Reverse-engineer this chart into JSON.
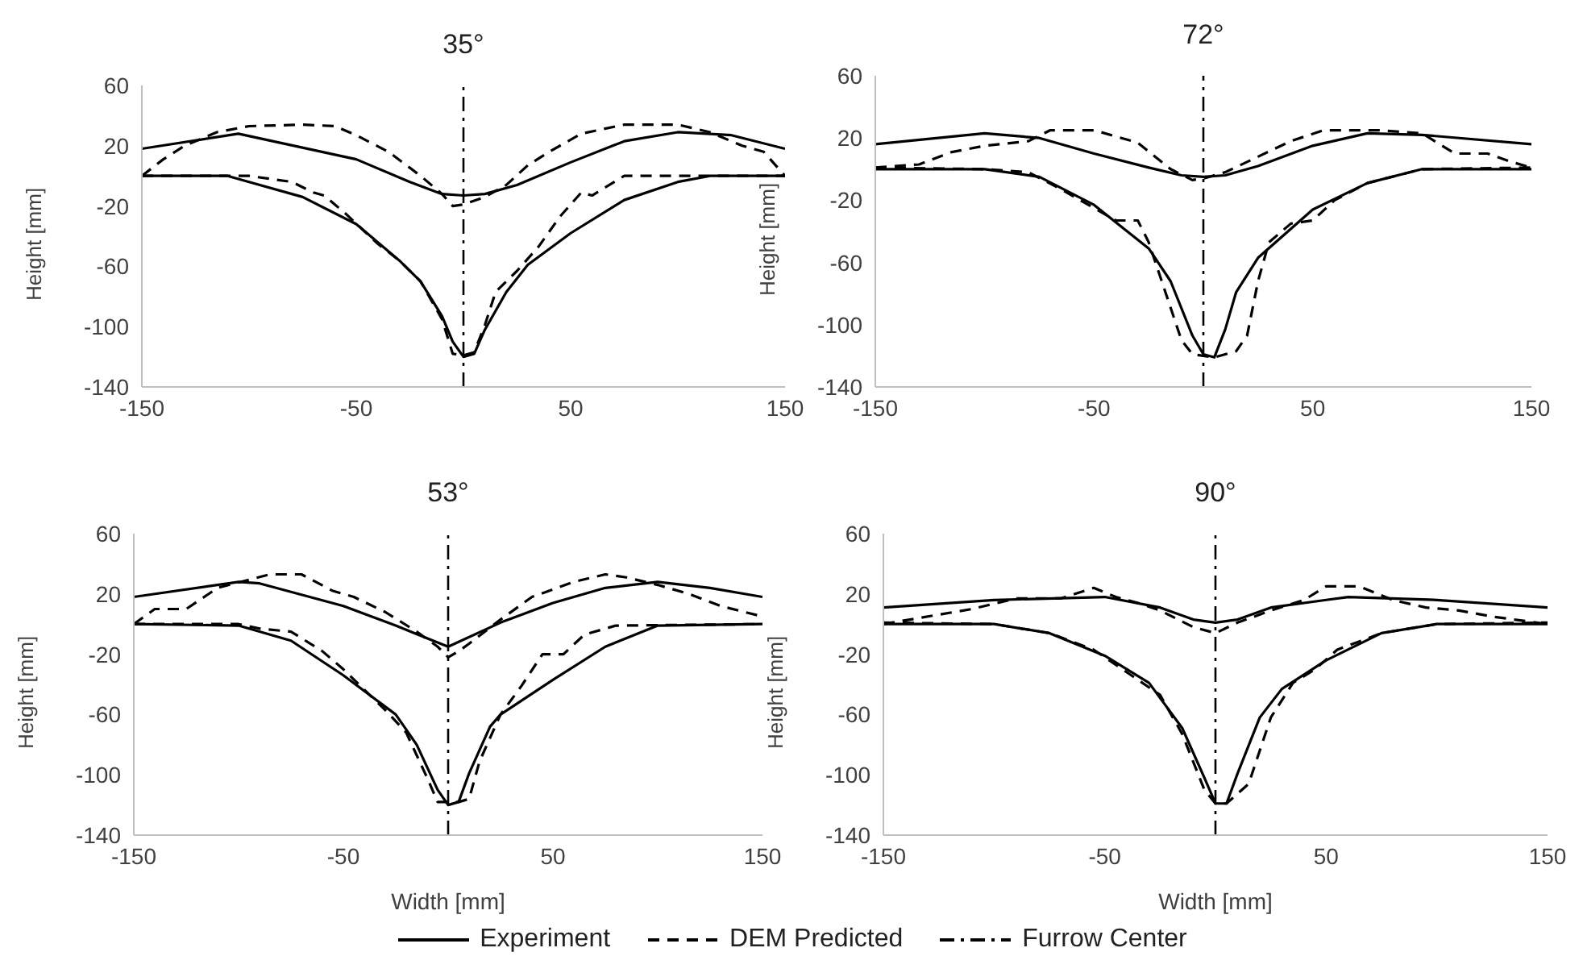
{
  "chart_data": [
    {
      "type": "line",
      "title": "35°",
      "ylabel": "Height [mm]",
      "xlim": [
        -150,
        150
      ],
      "xticks": [
        -150,
        -50,
        50,
        150
      ],
      "ylim": [
        -140,
        60
      ],
      "yticks": [
        -140,
        -100,
        -60,
        -20,
        20,
        60
      ],
      "legend": "bottom",
      "ref_lines": [
        {
          "axis": "x",
          "value": 0,
          "label": "Furrow Center",
          "line_style": "dashdot",
          "color": "#000000"
        }
      ],
      "series": [
        {
          "name": "Experiment",
          "color": "#000000",
          "line_style": "solid",
          "x": [
            -150,
            -105,
            -50,
            -25,
            -10,
            0,
            10,
            25,
            50,
            75,
            100,
            125,
            150
          ],
          "values": [
            18,
            28,
            11,
            -4,
            -12,
            -13,
            -12,
            -6,
            9,
            23,
            29,
            27,
            18
          ]
        },
        {
          "color": "#000000",
          "line_style": "solid",
          "x": [
            -150,
            -110,
            -100,
            -75,
            -50,
            -30,
            -20,
            -10,
            -5,
            0,
            5,
            10,
            20,
            30,
            50,
            75,
            100,
            115,
            150
          ],
          "values": [
            0,
            0,
            -4,
            -14,
            -32,
            -56,
            -70,
            -93,
            -110,
            -120,
            -118,
            -102,
            -77,
            -59,
            -38,
            -16,
            -4,
            0,
            0
          ]
        },
        {
          "name": "DEM Predicted",
          "color": "#000000",
          "line_style": "dashed",
          "x": [
            -150,
            -140,
            -130,
            -115,
            -100,
            -75,
            -60,
            -50,
            -35,
            -20,
            -10,
            -5,
            0,
            10,
            20,
            30,
            40,
            55,
            75,
            100,
            115,
            130,
            140,
            150
          ],
          "values": [
            0,
            11,
            20,
            29,
            33,
            34,
            33,
            27,
            16,
            0,
            -12,
            -20,
            -19,
            -14,
            -6,
            7,
            16,
            28,
            34,
            34,
            29,
            20,
            16,
            0
          ]
        },
        {
          "color": "#000000",
          "line_style": "dashed",
          "x": [
            -150,
            -100,
            -90,
            -80,
            -70,
            -65,
            -55,
            -40,
            -30,
            -20,
            -10,
            -5,
            0,
            5,
            10,
            15,
            25,
            35,
            45,
            55,
            60,
            75,
            100,
            150
          ],
          "values": [
            0,
            0,
            -2,
            -4,
            -11,
            -13,
            -25,
            -45,
            -56,
            -70,
            -95,
            -118,
            -119,
            -117,
            -99,
            -77,
            -63,
            -47,
            -27,
            -11,
            -13,
            0,
            0,
            0
          ]
        }
      ]
    },
    {
      "type": "line",
      "title": "72°",
      "ylabel": "Height [mm]",
      "xlim": [
        -150,
        150
      ],
      "xticks": [
        -150,
        -50,
        50,
        150
      ],
      "ylim": [
        -140,
        60
      ],
      "yticks": [
        -140,
        -100,
        -60,
        -20,
        20,
        60
      ],
      "ref_lines": [
        {
          "axis": "x",
          "value": 0,
          "line_style": "dashdot",
          "color": "#000000"
        }
      ],
      "series": [
        {
          "color": "#000000",
          "line_style": "solid",
          "x": [
            -150,
            -100,
            -75,
            -50,
            -25,
            -10,
            0,
            10,
            25,
            50,
            75,
            100,
            150
          ],
          "values": [
            16,
            23,
            20,
            10,
            1,
            -4,
            -5,
            -4,
            2,
            15,
            23,
            22,
            16
          ]
        },
        {
          "color": "#000000",
          "line_style": "solid",
          "x": [
            -150,
            -100,
            -75,
            -50,
            -25,
            -15,
            -5,
            0,
            5,
            10,
            15,
            25,
            50,
            75,
            100,
            150
          ],
          "values": [
            0,
            0,
            -5,
            -23,
            -51,
            -72,
            -107,
            -119,
            -121,
            -103,
            -79,
            -57,
            -26,
            -9,
            0,
            0
          ]
        },
        {
          "color": "#000000",
          "line_style": "dashed",
          "x": [
            -150,
            -130,
            -115,
            -100,
            -80,
            -70,
            -50,
            -30,
            -15,
            -5,
            0,
            10,
            25,
            40,
            55,
            80,
            100,
            115,
            130,
            140,
            150
          ],
          "values": [
            1,
            3,
            11,
            15,
            18,
            25,
            25,
            17,
            0,
            -7,
            -6,
            -2,
            8,
            18,
            25,
            25,
            23,
            10,
            10,
            5,
            1
          ]
        },
        {
          "color": "#000000",
          "line_style": "dashed",
          "x": [
            -150,
            -100,
            -80,
            -65,
            -55,
            -40,
            -30,
            -25,
            -20,
            -15,
            -10,
            -5,
            5,
            15,
            20,
            25,
            30,
            40,
            50,
            60,
            75,
            100,
            150
          ],
          "values": [
            1,
            0,
            -2,
            -13,
            -21,
            -33,
            -33,
            -47,
            -68,
            -89,
            -110,
            -119,
            -121,
            -117,
            -107,
            -72,
            -47,
            -35,
            -33,
            -20,
            -9,
            0,
            1
          ]
        }
      ]
    },
    {
      "type": "line",
      "title": "53°",
      "xlabel": "Width [mm]",
      "ylabel": "Height [mm]",
      "xlim": [
        -150,
        150
      ],
      "xticks": [
        -150,
        -50,
        50,
        150
      ],
      "ylim": [
        -140,
        60
      ],
      "yticks": [
        -140,
        -100,
        -60,
        -20,
        20,
        60
      ],
      "ref_lines": [
        {
          "axis": "x",
          "value": 0,
          "line_style": "dashdot",
          "color": "#000000"
        }
      ],
      "series": [
        {
          "color": "#000000",
          "line_style": "solid",
          "x": [
            -150,
            -100,
            -90,
            -50,
            -25,
            0,
            25,
            50,
            75,
            100,
            125,
            150
          ],
          "values": [
            18,
            28,
            27,
            12,
            -1,
            -15,
            1,
            14,
            24,
            28,
            24,
            18
          ]
        },
        {
          "color": "#000000",
          "line_style": "solid",
          "x": [
            -150,
            -100,
            -75,
            -50,
            -25,
            -15,
            -5,
            0,
            5,
            10,
            20,
            25,
            50,
            75,
            100,
            150
          ],
          "values": [
            0,
            -1,
            -11,
            -34,
            -60,
            -80,
            -110,
            -120,
            -118,
            -99,
            -68,
            -60,
            -37,
            -15,
            -1,
            0
          ]
        },
        {
          "color": "#000000",
          "line_style": "dashed",
          "x": [
            -150,
            -140,
            -125,
            -110,
            -85,
            -70,
            -55,
            -45,
            -30,
            -15,
            -5,
            0,
            5,
            10,
            25,
            40,
            60,
            75,
            85,
            100,
            115,
            130,
            150
          ],
          "values": [
            0,
            10,
            10,
            24,
            33,
            33,
            22,
            18,
            8,
            -5,
            -15,
            -22,
            -18,
            -13,
            3,
            18,
            28,
            33,
            31,
            26,
            20,
            12,
            5
          ]
        },
        {
          "color": "#000000",
          "line_style": "dashed",
          "x": [
            -150,
            -100,
            -90,
            -75,
            -60,
            -50,
            -30,
            -20,
            -10,
            -5,
            5,
            10,
            15,
            25,
            35,
            45,
            55,
            65,
            80,
            150
          ],
          "values": [
            0,
            0,
            -3,
            -5,
            -18,
            -30,
            -57,
            -72,
            -102,
            -118,
            -118,
            -116,
            -91,
            -60,
            -41,
            -20,
            -20,
            -7,
            -1,
            0
          ]
        }
      ]
    },
    {
      "type": "line",
      "title": "90°",
      "xlabel": "Width [mm]",
      "ylabel": "Height [mm]",
      "xlim": [
        -150,
        150
      ],
      "xticks": [
        -150,
        -50,
        50,
        150
      ],
      "ylim": [
        -140,
        60
      ],
      "yticks": [
        -140,
        -100,
        -60,
        -20,
        20,
        60
      ],
      "ref_lines": [
        {
          "axis": "x",
          "value": 0,
          "line_style": "dashdot",
          "color": "#000000"
        }
      ],
      "series": [
        {
          "color": "#000000",
          "line_style": "solid",
          "x": [
            -150,
            -100,
            -50,
            -25,
            -10,
            0,
            10,
            25,
            50,
            60,
            100,
            150
          ],
          "values": [
            11,
            16,
            18,
            11,
            3,
            1,
            3,
            11,
            16,
            18,
            16,
            11
          ]
        },
        {
          "color": "#000000",
          "line_style": "solid",
          "x": [
            -150,
            -100,
            -75,
            -50,
            -30,
            -15,
            -5,
            0,
            5,
            10,
            20,
            30,
            50,
            75,
            100,
            150
          ],
          "values": [
            0,
            0,
            -6,
            -21,
            -39,
            -69,
            -102,
            -119,
            -119,
            -99,
            -62,
            -43,
            -24,
            -6,
            0,
            0
          ]
        },
        {
          "color": "#000000",
          "line_style": "dashed",
          "x": [
            -150,
            -110,
            -90,
            -70,
            -55,
            -45,
            -35,
            -25,
            -10,
            0,
            10,
            25,
            40,
            50,
            65,
            80,
            95,
            110,
            125,
            150
          ],
          "values": [
            0,
            10,
            17,
            17,
            24,
            18,
            14,
            9,
            -2,
            -6,
            1,
            9,
            16,
            25,
            25,
            16,
            11,
            9,
            5,
            0
          ]
        },
        {
          "color": "#000000",
          "line_style": "dashed",
          "x": [
            -150,
            -100,
            -75,
            -55,
            -40,
            -25,
            -15,
            -5,
            0,
            5,
            15,
            20,
            25,
            35,
            45,
            55,
            75,
            100,
            150
          ],
          "values": [
            1,
            0,
            -6,
            -17,
            -32,
            -47,
            -73,
            -110,
            -119,
            -119,
            -106,
            -84,
            -62,
            -39,
            -30,
            -17,
            -6,
            0,
            1
          ]
        }
      ]
    }
  ]
}
